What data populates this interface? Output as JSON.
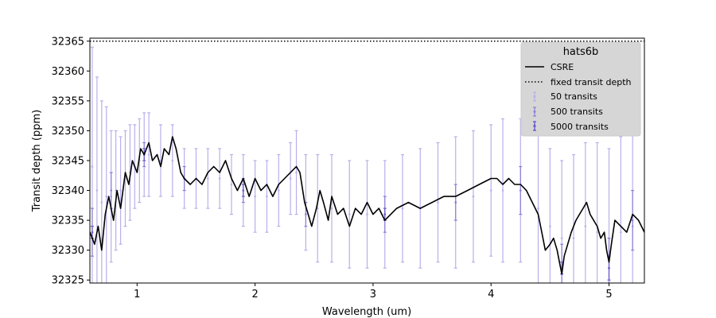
{
  "chart_data": {
    "type": "line",
    "xlabel": "Wavelength (um)",
    "ylabel": "Transit depth (ppm)",
    "xlim": [
      0.6,
      5.3
    ],
    "ylim": [
      32324.5,
      32365.5
    ],
    "x_ticks": [
      1,
      2,
      3,
      4,
      5
    ],
    "y_ticks": [
      32325,
      32330,
      32335,
      32340,
      32345,
      32350,
      32355,
      32360,
      32365
    ],
    "grid": false,
    "legend": {
      "title": "hats6b",
      "placement": "top-right",
      "entries": [
        {
          "label": "CSRE",
          "style": "solid-line",
          "color": "#000000"
        },
        {
          "label": "fixed transit depth",
          "style": "dotted-line",
          "color": "#000000"
        },
        {
          "label": "50 transits",
          "style": "errorbar",
          "color": "#b9b0ea"
        },
        {
          "label": "500 transits",
          "style": "errorbar",
          "color": "#8a7fd6"
        },
        {
          "label": "5000 transits",
          "style": "errorbar",
          "color": "#6a5acd"
        }
      ]
    },
    "fixed_transit_depth": 32365,
    "model_line": {
      "name": "CSRE",
      "color": "#000000",
      "points": [
        [
          0.6,
          32333
        ],
        [
          0.64,
          32331
        ],
        [
          0.67,
          32334
        ],
        [
          0.7,
          32330
        ],
        [
          0.73,
          32336
        ],
        [
          0.76,
          32339
        ],
        [
          0.8,
          32335
        ],
        [
          0.83,
          32340
        ],
        [
          0.86,
          32337
        ],
        [
          0.9,
          32343
        ],
        [
          0.93,
          32341
        ],
        [
          0.96,
          32345
        ],
        [
          1.0,
          32343
        ],
        [
          1.03,
          32347
        ],
        [
          1.06,
          32346
        ],
        [
          1.1,
          32348
        ],
        [
          1.13,
          32345
        ],
        [
          1.17,
          32346
        ],
        [
          1.2,
          32344
        ],
        [
          1.23,
          32347
        ],
        [
          1.27,
          32346
        ],
        [
          1.3,
          32349
        ],
        [
          1.33,
          32347
        ],
        [
          1.37,
          32343
        ],
        [
          1.4,
          32342
        ],
        [
          1.45,
          32341
        ],
        [
          1.5,
          32342
        ],
        [
          1.55,
          32341
        ],
        [
          1.6,
          32343
        ],
        [
          1.65,
          32344
        ],
        [
          1.7,
          32343
        ],
        [
          1.75,
          32345
        ],
        [
          1.8,
          32342
        ],
        [
          1.85,
          32340
        ],
        [
          1.9,
          32342
        ],
        [
          1.95,
          32339
        ],
        [
          2.0,
          32342
        ],
        [
          2.05,
          32340
        ],
        [
          2.1,
          32341
        ],
        [
          2.15,
          32339
        ],
        [
          2.2,
          32341
        ],
        [
          2.25,
          32342
        ],
        [
          2.3,
          32343
        ],
        [
          2.35,
          32344
        ],
        [
          2.38,
          32343
        ],
        [
          2.42,
          32338
        ],
        [
          2.45,
          32336
        ],
        [
          2.48,
          32334
        ],
        [
          2.52,
          32337
        ],
        [
          2.55,
          32340
        ],
        [
          2.58,
          32338
        ],
        [
          2.62,
          32335
        ],
        [
          2.65,
          32339
        ],
        [
          2.7,
          32336
        ],
        [
          2.75,
          32337
        ],
        [
          2.8,
          32334
        ],
        [
          2.85,
          32337
        ],
        [
          2.9,
          32336
        ],
        [
          2.95,
          32338
        ],
        [
          3.0,
          32336
        ],
        [
          3.05,
          32337
        ],
        [
          3.1,
          32335
        ],
        [
          3.15,
          32336
        ],
        [
          3.2,
          32337
        ],
        [
          3.3,
          32338
        ],
        [
          3.4,
          32337
        ],
        [
          3.5,
          32338
        ],
        [
          3.6,
          32339
        ],
        [
          3.7,
          32339
        ],
        [
          3.8,
          32340
        ],
        [
          3.9,
          32341
        ],
        [
          4.0,
          32342
        ],
        [
          4.05,
          32342
        ],
        [
          4.1,
          32341
        ],
        [
          4.15,
          32342
        ],
        [
          4.2,
          32341
        ],
        [
          4.25,
          32341
        ],
        [
          4.3,
          32340
        ],
        [
          4.35,
          32338
        ],
        [
          4.4,
          32336
        ],
        [
          4.43,
          32333
        ],
        [
          4.46,
          32330
        ],
        [
          4.5,
          32331
        ],
        [
          4.53,
          32332
        ],
        [
          4.56,
          32330
        ],
        [
          4.58,
          32328
        ],
        [
          4.6,
          32326
        ],
        [
          4.62,
          32329
        ],
        [
          4.65,
          32331
        ],
        [
          4.68,
          32333
        ],
        [
          4.72,
          32335
        ],
        [
          4.75,
          32336
        ],
        [
          4.78,
          32337
        ],
        [
          4.81,
          32338
        ],
        [
          4.84,
          32336
        ],
        [
          4.87,
          32335
        ],
        [
          4.9,
          32334
        ],
        [
          4.93,
          32332
        ],
        [
          4.96,
          32333
        ],
        [
          4.98,
          32330
        ],
        [
          5.0,
          32328
        ],
        [
          5.02,
          32331
        ],
        [
          5.05,
          32335
        ],
        [
          5.1,
          32334
        ],
        [
          5.15,
          32333
        ],
        [
          5.2,
          32336
        ],
        [
          5.25,
          32335
        ],
        [
          5.3,
          32333
        ]
      ]
    },
    "error_series": [
      {
        "name": "50 transits",
        "color": "#b9b0ea",
        "points": [
          [
            0.62,
            32344,
            20
          ],
          [
            0.66,
            32340,
            19
          ],
          [
            0.7,
            32338,
            17
          ],
          [
            0.74,
            32339,
            15
          ],
          [
            0.78,
            32339,
            11
          ],
          [
            0.82,
            32340,
            10
          ],
          [
            0.86,
            32340,
            9
          ],
          [
            0.9,
            32342,
            8
          ],
          [
            0.94,
            32343,
            8
          ],
          [
            0.98,
            32344,
            7
          ],
          [
            1.02,
            32345,
            7
          ],
          [
            1.06,
            32346,
            7
          ],
          [
            1.1,
            32346,
            7
          ],
          [
            1.2,
            32345,
            6
          ],
          [
            1.3,
            32345,
            6
          ],
          [
            1.4,
            32342,
            5
          ],
          [
            1.5,
            32342,
            5
          ],
          [
            1.6,
            32342,
            5
          ],
          [
            1.7,
            32342,
            5
          ],
          [
            1.8,
            32341,
            5
          ],
          [
            1.9,
            32340,
            6
          ],
          [
            2.0,
            32339,
            6
          ],
          [
            2.1,
            32339,
            6
          ],
          [
            2.2,
            32340,
            6
          ],
          [
            2.3,
            32342,
            6
          ],
          [
            2.35,
            32343,
            7
          ],
          [
            2.43,
            32338,
            8
          ],
          [
            2.53,
            32337,
            9
          ],
          [
            2.65,
            32337,
            9
          ],
          [
            2.8,
            32336,
            9
          ],
          [
            2.95,
            32336,
            9
          ],
          [
            3.1,
            32336,
            9
          ],
          [
            3.25,
            32337,
            9
          ],
          [
            3.4,
            32337,
            10
          ],
          [
            3.55,
            32338,
            10
          ],
          [
            3.7,
            32338,
            11
          ],
          [
            3.85,
            32339,
            11
          ],
          [
            4.0,
            32340,
            11
          ],
          [
            4.1,
            32340,
            12
          ],
          [
            4.25,
            32340,
            12
          ],
          [
            4.4,
            32337,
            13
          ],
          [
            4.5,
            32334,
            13
          ],
          [
            4.6,
            32332,
            13
          ],
          [
            4.7,
            32332,
            14
          ],
          [
            4.8,
            32334,
            14
          ],
          [
            4.9,
            32333,
            15
          ],
          [
            5.0,
            32332,
            15
          ],
          [
            5.1,
            32333,
            16
          ],
          [
            5.2,
            32334,
            17
          ]
        ]
      },
      {
        "name": "500 transits",
        "color": "#8a7fd6",
        "points": [
          [
            0.62,
            32333,
            4
          ],
          [
            0.78,
            32340,
            3
          ],
          [
            1.06,
            32346,
            2
          ],
          [
            1.4,
            32342,
            2
          ],
          [
            1.9,
            32340,
            2
          ],
          [
            2.43,
            32336,
            2
          ],
          [
            3.1,
            32336,
            3
          ],
          [
            3.7,
            32338,
            3
          ],
          [
            4.25,
            32340,
            4
          ],
          [
            4.6,
            32327,
            4
          ],
          [
            5.0,
            32327,
            5
          ],
          [
            5.2,
            32335,
            5
          ]
        ]
      },
      {
        "name": "5000 transits",
        "color": "#6a5acd",
        "points": [
          [
            0.62,
            32333,
            1
          ],
          [
            1.06,
            32346,
            1
          ],
          [
            1.9,
            32340,
            1
          ],
          [
            3.1,
            32336,
            1
          ],
          [
            4.6,
            32327,
            1
          ],
          [
            5.0,
            32327,
            2
          ]
        ]
      }
    ]
  }
}
